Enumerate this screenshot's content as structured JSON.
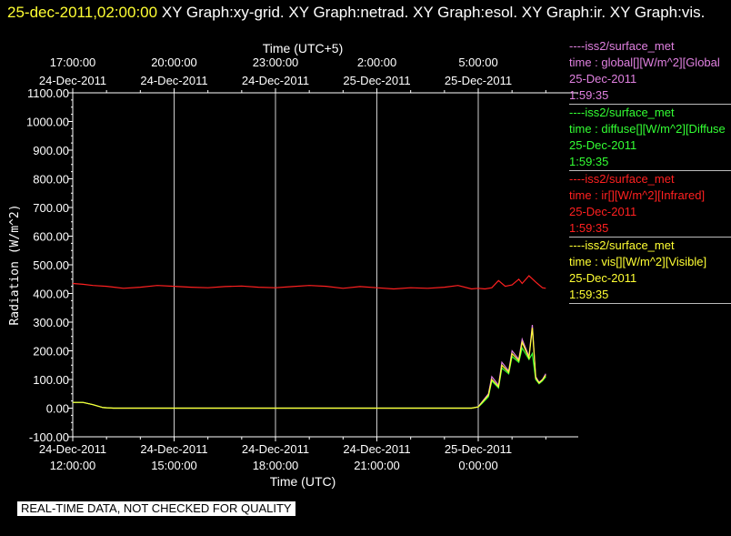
{
  "title": {
    "date": "25-dec-2011,02:00:00",
    "rest": " XY Graph:xy-grid.  XY Graph:netrad.  XY Graph:esol.  XY Graph:ir.  XY Graph:vis."
  },
  "footer_note": "REAL-TIME DATA, NOT CHECKED FOR QUALITY",
  "legend": [
    {
      "color": "#e080e0",
      "lines": [
        "----iss2/surface_met",
        "time : global[][W/m^2][Global",
        "25-Dec-2011",
        "1:59:35"
      ]
    },
    {
      "color": "#33ff33",
      "lines": [
        "----iss2/surface_met",
        "time : diffuse[][W/m^2][Diffuse",
        "25-Dec-2011",
        "1:59:35"
      ]
    },
    {
      "color": "#ff2020",
      "lines": [
        "----iss2/surface_met",
        "time : ir[][W/m^2][Infrared]",
        "25-Dec-2011",
        "1:59:35"
      ]
    },
    {
      "color": "#ffff33",
      "lines": [
        "----iss2/surface_met",
        "time : vis[][W/m^2][Visible]",
        "25-Dec-2011",
        "1:59:35"
      ]
    }
  ],
  "chart_data": {
    "type": "line",
    "title": "",
    "xlabel": "Time (UTC)",
    "x2label": "Time (UTC+5)",
    "ylabel": "Radiation (W/m^2)",
    "xlim_hours_utc": [
      0,
      14
    ],
    "ylim": [
      -100,
      1100
    ],
    "yticks": [
      "1100.00",
      "1000.00",
      "900.00",
      "800.00",
      "700.00",
      "600.00",
      "500.00",
      "400.00",
      "300.00",
      "200.00",
      "100.00",
      "0.00",
      "-100.00"
    ],
    "xticks_bottom": [
      {
        "date": "24-Dec-2011",
        "time": "12:00:00"
      },
      {
        "date": "24-Dec-2011",
        "time": "15:00:00"
      },
      {
        "date": "24-Dec-2011",
        "time": "18:00:00"
      },
      {
        "date": "24-Dec-2011",
        "time": "21:00:00"
      },
      {
        "date": "25-Dec-2011",
        "time": "0:00:00"
      }
    ],
    "xticks_top": [
      {
        "time": "17:00:00",
        "date": "24-Dec-2011"
      },
      {
        "time": "20:00:00",
        "date": "24-Dec-2011"
      },
      {
        "time": "23:00:00",
        "date": "24-Dec-2011"
      },
      {
        "time": "2:00:00",
        "date": "25-Dec-2011"
      },
      {
        "time": "5:00:00",
        "date": "25-Dec-2011"
      }
    ],
    "grid": true,
    "legend_position": "right",
    "series": [
      {
        "name": "ir",
        "color": "#ff2020",
        "x": [
          0,
          0.3,
          0.6,
          1.0,
          1.5,
          2.0,
          2.5,
          3.0,
          3.5,
          4.0,
          4.5,
          5.0,
          5.5,
          6.0,
          6.5,
          7.0,
          7.5,
          8.0,
          8.5,
          9.0,
          9.5,
          10.0,
          10.5,
          11.0,
          11.4,
          11.8,
          12.0,
          12.2,
          12.4,
          12.6,
          12.8,
          13.0,
          13.2,
          13.3,
          13.5,
          13.7,
          13.9,
          14.0
        ],
        "y": [
          435,
          432,
          428,
          425,
          418,
          422,
          428,
          425,
          422,
          420,
          424,
          426,
          422,
          420,
          424,
          428,
          425,
          418,
          424,
          420,
          416,
          420,
          418,
          422,
          428,
          416,
          418,
          416,
          420,
          445,
          425,
          430,
          450,
          435,
          462,
          440,
          420,
          418
        ]
      },
      {
        "name": "global",
        "color": "#e080e0",
        "x": [
          0,
          0.3,
          0.6,
          0.9,
          1.2,
          2,
          3,
          4,
          5,
          6,
          7,
          8,
          9,
          10,
          11,
          11.4,
          11.8,
          12.0,
          12.1,
          12.3,
          12.4,
          12.6,
          12.7,
          12.9,
          13.0,
          13.2,
          13.3,
          13.5,
          13.6,
          13.7,
          13.8,
          13.9,
          14.0
        ],
        "y": [
          20,
          20,
          12,
          2,
          0,
          0,
          0,
          0,
          0,
          0,
          0,
          0,
          0,
          0,
          0,
          0,
          0,
          5,
          20,
          50,
          110,
          80,
          160,
          130,
          200,
          170,
          240,
          180,
          290,
          110,
          90,
          100,
          120
        ]
      },
      {
        "name": "diffuse",
        "color": "#33ff33",
        "x": [
          0,
          0.3,
          0.6,
          0.9,
          1.2,
          2,
          3,
          4,
          5,
          6,
          7,
          8,
          9,
          10,
          11,
          11.4,
          11.8,
          12.0,
          12.1,
          12.3,
          12.4,
          12.6,
          12.7,
          12.9,
          13.0,
          13.2,
          13.3,
          13.5,
          13.6,
          13.7,
          13.8,
          13.9,
          14.0
        ],
        "y": [
          20,
          20,
          12,
          2,
          0,
          0,
          0,
          0,
          0,
          0,
          0,
          0,
          0,
          0,
          0,
          0,
          0,
          4,
          15,
          40,
          95,
          70,
          140,
          120,
          180,
          160,
          210,
          170,
          190,
          100,
          85,
          95,
          110
        ]
      },
      {
        "name": "vis",
        "color": "#ffff33",
        "x": [
          0,
          0.3,
          0.6,
          0.9,
          1.2,
          2,
          3,
          4,
          5,
          6,
          7,
          8,
          9,
          10,
          11,
          11.4,
          11.8,
          12.0,
          12.1,
          12.3,
          12.4,
          12.6,
          12.7,
          12.9,
          13.0,
          13.2,
          13.3,
          13.5,
          13.6,
          13.7,
          13.8,
          13.9,
          14.0
        ],
        "y": [
          20,
          20,
          12,
          2,
          0,
          0,
          0,
          0,
          0,
          0,
          0,
          0,
          0,
          0,
          0,
          0,
          0,
          4,
          18,
          45,
          100,
          75,
          150,
          125,
          190,
          165,
          230,
          175,
          280,
          105,
          88,
          98,
          115
        ]
      }
    ]
  }
}
